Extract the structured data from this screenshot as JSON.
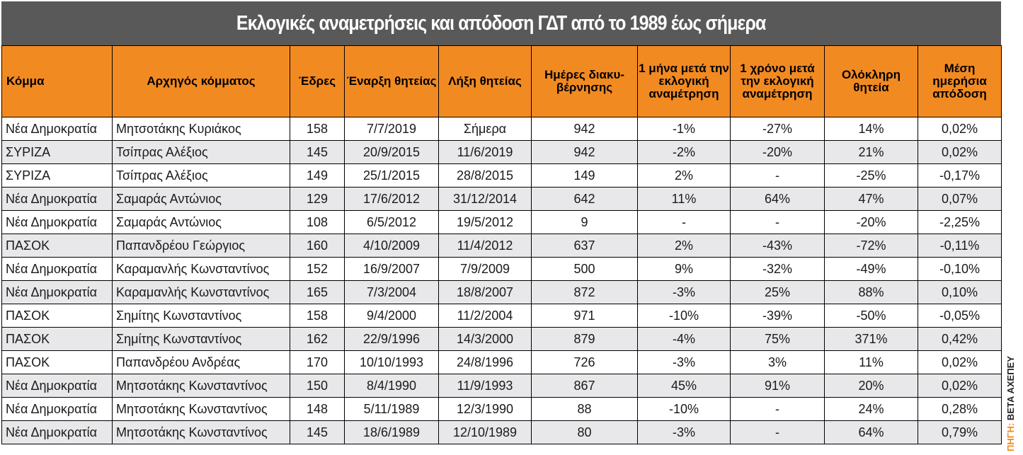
{
  "title": "Εκλογικές αναμετρήσεις και απόδοση ΓΔΤ από το 1989 έως σήμερα",
  "headers": [
    "Κόμμα",
    "Αρχηγός κόμματος",
    "Έδρες",
    "Έναρξη θητείας",
    "Λήξη θητείας",
    "Ημέρες διακυ-βέρνησης",
    "1 μήνα μετά την εκλογική αναμέτρηση",
    "1 χρόνο μετά την εκλογική αναμέτρηση",
    "Ολόκληρη θητεία",
    "Μέση ημερήσια απόδοση"
  ],
  "rows": [
    [
      "Νέα Δημοκρατία",
      "Μητσοτάκης Κυριάκος",
      "158",
      "7/7/2019",
      "Σήμερα",
      "942",
      "-1%",
      "-27%",
      "14%",
      "0,02%"
    ],
    [
      "ΣΥΡΙΖΑ",
      "Τσίπρας Αλέξιος",
      "145",
      "20/9/2015",
      "11/6/2019",
      "942",
      "-2%",
      "-20%",
      "21%",
      "0,02%"
    ],
    [
      "ΣΥΡΙΖΑ",
      "Τσίπρας Αλέξιος",
      "149",
      "25/1/2015",
      "28/8/2015",
      "149",
      "2%",
      "-",
      "-25%",
      "-0,17%"
    ],
    [
      "Νέα Δημοκρατία",
      "Σαμαράς Αντώνιος",
      "129",
      "17/6/2012",
      "31/12/2014",
      "642",
      "11%",
      "64%",
      "47%",
      "0,07%"
    ],
    [
      "Νέα Δημοκρατία",
      "Σαμαράς Αντώνιος",
      "108",
      "6/5/2012",
      "19/5/2012",
      "9",
      "-",
      "-",
      "-20%",
      "-2,25%"
    ],
    [
      "ΠΑΣΟΚ",
      "Παπανδρέου Γεώργιος",
      "160",
      "4/10/2009",
      "11/4/2012",
      "637",
      "2%",
      "-43%",
      "-72%",
      "-0,11%"
    ],
    [
      "Νέα Δημοκρατία",
      "Καραμανλής Κωνσταντίνος",
      "152",
      "16/9/2007",
      "7/9/2009",
      "500",
      "9%",
      "-32%",
      "-49%",
      "-0,10%"
    ],
    [
      "Νέα Δημοκρατία",
      "Καραμανλής Κωνσταντίνος",
      "165",
      "7/3/2004",
      "18/8/2007",
      "872",
      "-3%",
      "25%",
      "88%",
      "0,10%"
    ],
    [
      "ΠΑΣΟΚ",
      "Σημίτης Κωνσταντίνος",
      "158",
      "9/4/2000",
      "11/2/2004",
      "971",
      "-10%",
      "-39%",
      "-50%",
      "-0,05%"
    ],
    [
      "ΠΑΣΟΚ",
      "Σημίτης Κωνσταντίνος",
      "162",
      "22/9/1996",
      "14/3/2000",
      "879",
      "-4%",
      "75%",
      "371%",
      "0,42%"
    ],
    [
      "ΠΑΣΟΚ",
      "Παπανδρέου Ανδρέας",
      "170",
      "10/10/1993",
      "24/8/1996",
      "726",
      "-3%",
      "3%",
      "11%",
      "0,02%"
    ],
    [
      "Νέα Δημοκρατία",
      "Μητσοτάκης Κωνσταντίνος",
      "150",
      "8/4/1990",
      "11/9/1993",
      "867",
      "45%",
      "91%",
      "20%",
      "0,02%"
    ],
    [
      "Νέα Δημοκρατία",
      "Μητσοτάκης Κωνσταντίνος",
      "148",
      "5/11/1989",
      "12/3/1990",
      "88",
      "-10%",
      "-",
      "24%",
      "0,28%"
    ],
    [
      "Νέα Δημοκρατία",
      "Μητσοτάκης Κωνσταντίνος",
      "145",
      "18/6/1989",
      "12/10/1989",
      "80",
      "-3%",
      "-",
      "64%",
      "0,79%"
    ]
  ],
  "source": {
    "label": "ΠΗΓΗ:",
    "value": "ΒΕΤΑ ΑΧΕΠΕΥ"
  },
  "colors": {
    "header_bg": "#f28a22",
    "title_bg": "#595959",
    "row_alt": "#e8e8ea"
  }
}
